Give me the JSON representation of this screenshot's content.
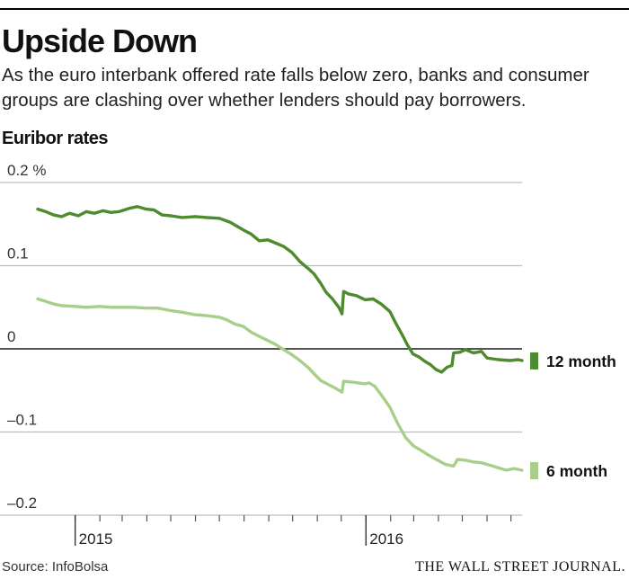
{
  "header": {
    "title": "Upside Down",
    "subtitle": "As the euro interbank offered rate falls below zero, banks and consumer groups are clashing over whether lenders should pay borrowers.",
    "chart_label": "Euribor rates"
  },
  "footer": {
    "source": "Source: InfoBolsa",
    "brand": "THE WALL STREET JOURNAL."
  },
  "chart_data": {
    "type": "line",
    "title": "Euribor rates",
    "ylabel": "",
    "xlabel": "",
    "ylim": [
      -0.2,
      0.2
    ],
    "xlim": [
      "2014-11-15",
      "2016-07-15"
    ],
    "y_ticks": [
      {
        "value": 0.2,
        "label": "0.2 %"
      },
      {
        "value": 0.1,
        "label": "0.1"
      },
      {
        "value": 0,
        "label": "0"
      },
      {
        "value": -0.1,
        "label": "–0.1"
      },
      {
        "value": -0.2,
        "label": "–0.2"
      }
    ],
    "year_labels": [
      {
        "date": "2015-01-01",
        "label": "2015"
      },
      {
        "date": "2016-01-01",
        "label": "2016"
      }
    ],
    "month_ticks": [
      "2015-01-01",
      "2015-02-01",
      "2015-03-01",
      "2015-04-01",
      "2015-05-01",
      "2015-06-01",
      "2015-07-01",
      "2015-08-01",
      "2015-09-01",
      "2015-10-01",
      "2015-11-01",
      "2015-12-01",
      "2016-01-01",
      "2016-02-01",
      "2016-03-01",
      "2016-04-01",
      "2016-05-01",
      "2016-06-01",
      "2016-07-01"
    ],
    "grid": true,
    "series": [
      {
        "name": "12 month",
        "color": "#4e8b2e",
        "points": [
          [
            "2014-11-15",
            0.168
          ],
          [
            "2014-11-25",
            0.165
          ],
          [
            "2014-12-05",
            0.161
          ],
          [
            "2014-12-15",
            0.159
          ],
          [
            "2014-12-25",
            0.163
          ],
          [
            "2015-01-05",
            0.16
          ],
          [
            "2015-01-15",
            0.165
          ],
          [
            "2015-01-25",
            0.163
          ],
          [
            "2015-02-05",
            0.166
          ],
          [
            "2015-02-15",
            0.164
          ],
          [
            "2015-02-25",
            0.165
          ],
          [
            "2015-03-10",
            0.169
          ],
          [
            "2015-03-20",
            0.171
          ],
          [
            "2015-03-31",
            0.168
          ],
          [
            "2015-04-10",
            0.167
          ],
          [
            "2015-04-20",
            0.161
          ],
          [
            "2015-05-01",
            0.16
          ],
          [
            "2015-05-15",
            0.158
          ],
          [
            "2015-06-01",
            0.159
          ],
          [
            "2015-06-15",
            0.158
          ],
          [
            "2015-07-01",
            0.157
          ],
          [
            "2015-07-15",
            0.152
          ],
          [
            "2015-07-31",
            0.143
          ],
          [
            "2015-08-10",
            0.138
          ],
          [
            "2015-08-20",
            0.13
          ],
          [
            "2015-08-31",
            0.131
          ],
          [
            "2015-09-10",
            0.127
          ],
          [
            "2015-09-20",
            0.123
          ],
          [
            "2015-09-30",
            0.116
          ],
          [
            "2015-10-10",
            0.105
          ],
          [
            "2015-10-20",
            0.097
          ],
          [
            "2015-10-28",
            0.09
          ],
          [
            "2015-11-05",
            0.079
          ],
          [
            "2015-11-12",
            0.068
          ],
          [
            "2015-11-20",
            0.06
          ],
          [
            "2015-11-28",
            0.05
          ],
          [
            "2015-12-02",
            0.042
          ],
          [
            "2015-12-04",
            0.069
          ],
          [
            "2015-12-10",
            0.066
          ],
          [
            "2015-12-20",
            0.064
          ],
          [
            "2015-12-31",
            0.059
          ],
          [
            "2016-01-10",
            0.06
          ],
          [
            "2016-01-20",
            0.054
          ],
          [
            "2016-01-31",
            0.045
          ],
          [
            "2016-02-08",
            0.03
          ],
          [
            "2016-02-15",
            0.018
          ],
          [
            "2016-02-22",
            0.005
          ],
          [
            "2016-02-29",
            -0.006
          ],
          [
            "2016-03-08",
            -0.01
          ],
          [
            "2016-03-15",
            -0.015
          ],
          [
            "2016-03-22",
            -0.019
          ],
          [
            "2016-03-29",
            -0.025
          ],
          [
            "2016-04-05",
            -0.028
          ],
          [
            "2016-04-12",
            -0.022
          ],
          [
            "2016-04-18",
            -0.02
          ],
          [
            "2016-04-20",
            -0.005
          ],
          [
            "2016-04-28",
            -0.004
          ],
          [
            "2016-05-05",
            -0.001
          ],
          [
            "2016-05-15",
            -0.005
          ],
          [
            "2016-05-25",
            -0.003
          ],
          [
            "2016-06-01",
            -0.011
          ],
          [
            "2016-06-15",
            -0.013
          ],
          [
            "2016-06-30",
            -0.014
          ],
          [
            "2016-07-10",
            -0.013
          ],
          [
            "2016-07-15",
            -0.014
          ]
        ]
      },
      {
        "name": "6 month",
        "color": "#a7cf8a",
        "points": [
          [
            "2014-11-15",
            0.06
          ],
          [
            "2014-11-25",
            0.057
          ],
          [
            "2014-12-05",
            0.054
          ],
          [
            "2014-12-15",
            0.052
          ],
          [
            "2015-01-01",
            0.051
          ],
          [
            "2015-01-15",
            0.05
          ],
          [
            "2015-02-01",
            0.051
          ],
          [
            "2015-02-15",
            0.05
          ],
          [
            "2015-03-01",
            0.05
          ],
          [
            "2015-03-15",
            0.05
          ],
          [
            "2015-04-01",
            0.049
          ],
          [
            "2015-04-15",
            0.049
          ],
          [
            "2015-05-01",
            0.046
          ],
          [
            "2015-05-15",
            0.044
          ],
          [
            "2015-06-01",
            0.041
          ],
          [
            "2015-06-15",
            0.04
          ],
          [
            "2015-07-01",
            0.038
          ],
          [
            "2015-07-10",
            0.035
          ],
          [
            "2015-07-20",
            0.03
          ],
          [
            "2015-07-31",
            0.027
          ],
          [
            "2015-08-10",
            0.02
          ],
          [
            "2015-08-20",
            0.015
          ],
          [
            "2015-08-31",
            0.01
          ],
          [
            "2015-09-10",
            0.005
          ],
          [
            "2015-09-20",
            -0.001
          ],
          [
            "2015-09-30",
            -0.007
          ],
          [
            "2015-10-10",
            -0.014
          ],
          [
            "2015-10-20",
            -0.022
          ],
          [
            "2015-10-28",
            -0.03
          ],
          [
            "2015-11-05",
            -0.038
          ],
          [
            "2015-11-15",
            -0.043
          ],
          [
            "2015-11-25",
            -0.048
          ],
          [
            "2015-12-02",
            -0.052
          ],
          [
            "2015-12-04",
            -0.039
          ],
          [
            "2015-12-15",
            -0.04
          ],
          [
            "2015-12-31",
            -0.042
          ],
          [
            "2016-01-05",
            -0.041
          ],
          [
            "2016-01-12",
            -0.045
          ],
          [
            "2016-01-20",
            -0.055
          ],
          [
            "2016-01-31",
            -0.07
          ],
          [
            "2016-02-10",
            -0.09
          ],
          [
            "2016-02-20",
            -0.107
          ],
          [
            "2016-03-01",
            -0.117
          ],
          [
            "2016-03-10",
            -0.122
          ],
          [
            "2016-03-20",
            -0.128
          ],
          [
            "2016-03-31",
            -0.134
          ],
          [
            "2016-04-10",
            -0.139
          ],
          [
            "2016-04-20",
            -0.141
          ],
          [
            "2016-04-25",
            -0.133
          ],
          [
            "2016-05-05",
            -0.134
          ],
          [
            "2016-05-15",
            -0.136
          ],
          [
            "2016-05-25",
            -0.137
          ],
          [
            "2016-06-05",
            -0.14
          ],
          [
            "2016-06-15",
            -0.143
          ],
          [
            "2016-06-25",
            -0.146
          ],
          [
            "2016-07-05",
            -0.144
          ],
          [
            "2016-07-15",
            -0.146
          ]
        ]
      }
    ]
  }
}
